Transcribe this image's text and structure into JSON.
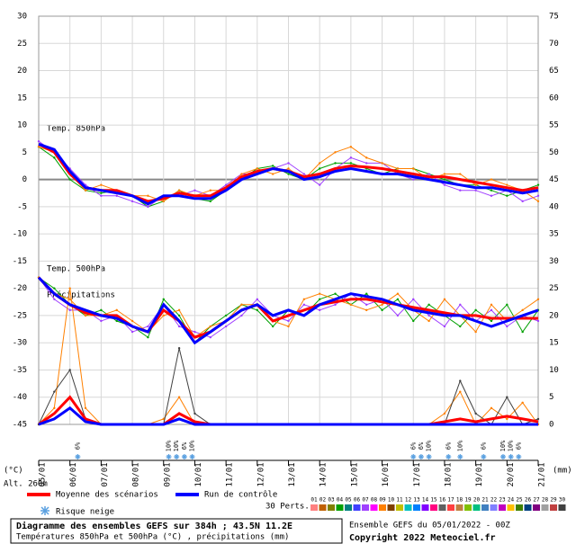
{
  "chart_data": {
    "type": "line",
    "annotations": [
      "Temp. 850hPa",
      "Temp. 500hPa",
      "Précipitations"
    ],
    "altitude": "Alt. 260m",
    "y_unit": "(°C)",
    "y2_unit": "(mm)",
    "ylim": [
      -45,
      30
    ],
    "yticks": [
      30,
      25,
      20,
      15,
      10,
      5,
      0,
      -5,
      -10,
      -15,
      -20,
      -25,
      -30,
      -35,
      -40,
      -45
    ],
    "y2lim": [
      0,
      75
    ],
    "y2ticks": [
      75,
      70,
      65,
      60,
      55,
      50,
      45,
      40,
      35,
      30,
      25,
      20,
      15,
      10,
      5,
      0
    ],
    "xlim": [
      0,
      384
    ],
    "xticks": [
      {
        "value": 0,
        "label": "05/01"
      },
      {
        "value": 24,
        "label": "06/01"
      },
      {
        "value": 48,
        "label": "07/01"
      },
      {
        "value": 72,
        "label": "08/01"
      },
      {
        "value": 96,
        "label": "09/01"
      },
      {
        "value": 120,
        "label": "10/01"
      },
      {
        "value": 144,
        "label": "11/01"
      },
      {
        "value": 168,
        "label": "12/01"
      },
      {
        "value": 192,
        "label": "13/01"
      },
      {
        "value": 216,
        "label": "14/01"
      },
      {
        "value": 240,
        "label": "15/01"
      },
      {
        "value": 264,
        "label": "16/01"
      },
      {
        "value": 288,
        "label": "17/01"
      },
      {
        "value": 312,
        "label": "18/01"
      },
      {
        "value": 336,
        "label": "19/01"
      },
      {
        "value": 360,
        "label": "20/01"
      },
      {
        "value": 384,
        "label": "21/01"
      }
    ],
    "grid": true,
    "x": [
      0,
      12,
      24,
      36,
      48,
      60,
      72,
      84,
      96,
      108,
      120,
      132,
      144,
      156,
      168,
      180,
      192,
      204,
      216,
      228,
      240,
      252,
      264,
      276,
      288,
      300,
      312,
      324,
      336,
      348,
      360,
      372,
      384
    ],
    "series": [
      {
        "color": "#00a000",
        "values": [
          6,
          4,
          0,
          -2,
          -2.5,
          -2,
          -3,
          -5,
          -4,
          -2,
          -3.5,
          -4,
          -2,
          0,
          2,
          2.5,
          1,
          0,
          2,
          3,
          3,
          2,
          1,
          2,
          2,
          1,
          0,
          -1,
          -1,
          -2,
          -3,
          -2,
          -1
        ]
      },
      {
        "color": "#a040ff",
        "values": [
          7,
          5,
          2,
          -1,
          -3,
          -3,
          -4,
          -5,
          -3,
          -3,
          -2,
          -3,
          -1,
          1,
          1,
          2,
          3,
          1,
          -1,
          2,
          4,
          3,
          3,
          1,
          0,
          1,
          -1,
          -2,
          -2,
          -3,
          -2,
          -4,
          -3
        ]
      },
      {
        "color": "#ff8000",
        "values": [
          6,
          5,
          1,
          -2,
          -1,
          -2,
          -3,
          -3,
          -4,
          -2,
          -3,
          -2,
          -2,
          1,
          2,
          1,
          2,
          0,
          3,
          5,
          6,
          4,
          3,
          2,
          2,
          0,
          1,
          1,
          -1,
          0,
          -1,
          -2,
          -4
        ]
      },
      {
        "color": "#00a000",
        "values": [
          -18,
          -20,
          -23,
          -25,
          -24,
          -26,
          -27,
          -29,
          -22,
          -25,
          -30,
          -27,
          -25,
          -23,
          -24,
          -27,
          -24,
          -25,
          -22,
          -21,
          -23,
          -21,
          -24,
          -22,
          -26,
          -23,
          -25,
          -27,
          -24,
          -26,
          -23,
          -28,
          -24
        ]
      },
      {
        "color": "#a040ff",
        "values": [
          -18,
          -22,
          -24,
          -24,
          -26,
          -25,
          -28,
          -27,
          -23,
          -27,
          -28,
          -29,
          -27,
          -25,
          -22,
          -25,
          -26,
          -23,
          -24,
          -23,
          -21,
          -23,
          -22,
          -25,
          -22,
          -25,
          -27,
          -23,
          -26,
          -24,
          -27,
          -25,
          -26
        ]
      },
      {
        "color": "#ff8000",
        "values": [
          -18,
          -21,
          -22,
          -25,
          -25,
          -24,
          -26,
          -28,
          -25,
          -24,
          -29,
          -27,
          -26,
          -23,
          -23,
          -26,
          -27,
          -22,
          -21,
          -22,
          -23,
          -24,
          -23,
          -21,
          -24,
          -26,
          -22,
          -25,
          -28,
          -23,
          -26,
          -24,
          -22
        ]
      },
      {
        "color": "#ff8000",
        "axis": "y2",
        "values": [
          0,
          3,
          25,
          3,
          0,
          0,
          0,
          0,
          1,
          5,
          0,
          0,
          0,
          0,
          0,
          0,
          0,
          0,
          0,
          0,
          0,
          0,
          0,
          0,
          0,
          0,
          2,
          6,
          0,
          3,
          1,
          4,
          0
        ]
      },
      {
        "color": "#404040",
        "axis": "y2",
        "values": [
          0,
          6,
          10,
          1,
          0,
          0,
          0,
          0,
          0,
          14,
          2,
          0,
          0,
          0,
          0,
          0,
          0,
          0,
          0,
          0,
          0,
          0,
          0,
          0,
          0,
          0,
          0,
          8,
          2,
          0,
          5,
          0,
          1
        ]
      },
      {
        "name": "Moyenne des scénarios",
        "color": "#ff0000",
        "values": [
          6.5,
          5,
          1,
          -1.5,
          -2,
          -2,
          -3,
          -4,
          -3.5,
          -2.5,
          -3,
          -3,
          -1.5,
          0.5,
          1.5,
          2,
          1.5,
          0.5,
          1,
          2,
          2.5,
          2.3,
          2,
          1.5,
          1,
          0.5,
          0.5,
          0,
          -0.5,
          -1,
          -1.5,
          -2,
          -1.5
        ]
      },
      {
        "name": "Run de contrôle",
        "color": "#0000ff",
        "values": [
          6.5,
          5.5,
          1.5,
          -1.5,
          -2,
          -2.5,
          -3,
          -4.5,
          -3,
          -3,
          -3.5,
          -3.5,
          -2,
          0,
          1,
          2,
          1.5,
          0,
          0.5,
          1.5,
          2,
          1.5,
          1,
          1,
          0.5,
          0,
          -0.5,
          -1,
          -1.5,
          -1.5,
          -2,
          -2.5,
          -2
        ]
      },
      {
        "color": "#ff0000",
        "values": [
          -18,
          -21,
          -23,
          -24.5,
          -25,
          -25,
          -27,
          -28,
          -24,
          -26,
          -29,
          -28,
          -26,
          -24,
          -23,
          -26,
          -25,
          -24,
          -23,
          -22.5,
          -22,
          -22,
          -22.5,
          -23,
          -23.5,
          -24,
          -24.5,
          -25,
          -25,
          -25.5,
          -25.5,
          -25.5,
          -25.5
        ]
      },
      {
        "color": "#0000ff",
        "values": [
          -18,
          -21,
          -23,
          -24,
          -25,
          -25.5,
          -27,
          -28,
          -23,
          -26,
          -30,
          -28,
          -26,
          -24,
          -23,
          -25,
          -24,
          -25,
          -23,
          -22,
          -21,
          -21.5,
          -22,
          -23,
          -24,
          -24.5,
          -25,
          -25,
          -26,
          -27,
          -26,
          -25,
          -24
        ]
      },
      {
        "color": "#ff0000",
        "axis": "y2",
        "values": [
          0,
          2,
          5,
          1,
          0,
          0,
          0,
          0,
          0,
          2,
          0.5,
          0,
          0,
          0,
          0,
          0,
          0,
          0,
          0,
          0,
          0,
          0,
          0,
          0,
          0,
          0,
          0.5,
          1,
          0.5,
          1,
          1.5,
          1,
          0.5
        ]
      },
      {
        "color": "#0000ff",
        "axis": "y2",
        "values": [
          0,
          1,
          3,
          0.5,
          0,
          0,
          0,
          0,
          0,
          1,
          0,
          0,
          0,
          0,
          0,
          0,
          0,
          0,
          0,
          0,
          0,
          0,
          0,
          0,
          0,
          0,
          0,
          0,
          0,
          0,
          0,
          0,
          0
        ]
      }
    ],
    "snow_risk_label": "Risque neige",
    "snow_risk": [
      {
        "x": 30,
        "label": "6%"
      },
      {
        "x": 100,
        "label": "10%"
      },
      {
        "x": 106,
        "label": "10%"
      },
      {
        "x": 112,
        "label": "6%"
      },
      {
        "x": 118,
        "label": "10%"
      },
      {
        "x": 288,
        "label": "6%"
      },
      {
        "x": 294,
        "label": "6%"
      },
      {
        "x": 300,
        "label": "10%"
      },
      {
        "x": 315,
        "label": "6%"
      },
      {
        "x": 324,
        "label": "10%"
      },
      {
        "x": 342,
        "label": "6%"
      },
      {
        "x": 357,
        "label": "10%"
      },
      {
        "x": 363,
        "label": "10%"
      },
      {
        "x": 369,
        "label": "6%"
      }
    ],
    "members_label": "30 Perts.",
    "member_labels": [
      "01",
      "02",
      "03",
      "04",
      "05",
      "06",
      "07",
      "08",
      "09",
      "10",
      "11",
      "12",
      "13",
      "14",
      "15",
      "16",
      "17",
      "18",
      "19",
      "20",
      "21",
      "22",
      "23",
      "24",
      "25",
      "26",
      "27",
      "28",
      "29",
      "30"
    ],
    "member_colors": [
      "#ff8080",
      "#c06000",
      "#808000",
      "#00a000",
      "#008080",
      "#4040ff",
      "#a040ff",
      "#ff00ff",
      "#ff8000",
      "#804000",
      "#c0c000",
      "#00c0c0",
      "#0080ff",
      "#8000ff",
      "#ff0080",
      "#606060",
      "#ff4040",
      "#c08040",
      "#80c000",
      "#00c080",
      "#4080c0",
      "#8080ff",
      "#c000c0",
      "#ffc000",
      "#408000",
      "#004080",
      "#800080",
      "#a0a0a0",
      "#c04040",
      "#404040"
    ],
    "footer": {
      "title": "Diagramme des ensembles GEFS sur 384h ; 43.5N 11.2E",
      "subtitle": "Températures 850hPa et 500hPa (°C) , précipitations (mm)",
      "run": "Ensemble GEFS du 05/01/2022 - 00Z",
      "copyright": "Copyright 2022 Meteociel.fr"
    }
  }
}
